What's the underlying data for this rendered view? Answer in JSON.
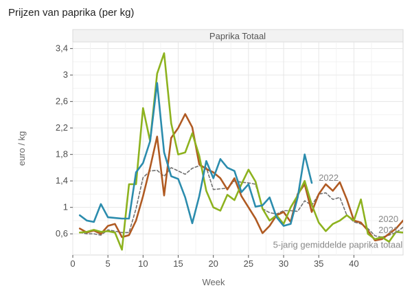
{
  "title": "Prijzen van paprika (per kg)",
  "chart_data": {
    "type": "line",
    "title": "Prijzen van paprika (per kg)",
    "panel_title": "Paprika Totaal",
    "xlabel": "Week",
    "ylabel": "euro / kg",
    "xlim": [
      0,
      47
    ],
    "ylim": [
      0.28,
      3.5
    ],
    "x_ticks": [
      0,
      5,
      10,
      15,
      20,
      25,
      30,
      35,
      40
    ],
    "y_ticks": [
      0.6,
      1,
      1.4,
      1.8,
      2.2,
      2.6,
      3,
      3.4
    ],
    "y_tick_labels": [
      "0,6",
      "1",
      "1,4",
      "1,8",
      "2,2",
      "2,6",
      "3",
      "3,4"
    ],
    "series": [
      {
        "name": "2022",
        "color": "#2b8cad",
        "x": [
          1,
          2,
          3,
          4,
          5,
          6,
          7,
          8,
          9,
          10,
          11,
          12,
          13,
          14,
          15,
          16,
          17,
          18,
          19,
          20,
          21,
          22,
          23,
          24,
          25,
          26,
          27,
          28,
          29,
          30,
          31,
          32,
          33,
          34
        ],
        "values": [
          0.88,
          0.8,
          0.78,
          1.05,
          0.85,
          0.84,
          0.83,
          0.83,
          1.53,
          1.67,
          2.0,
          2.88,
          1.83,
          1.47,
          1.43,
          1.15,
          0.76,
          1.17,
          1.7,
          1.44,
          1.73,
          1.6,
          1.55,
          1.23,
          1.35,
          1.01,
          1.03,
          1.15,
          0.85,
          0.72,
          0.75,
          1.15,
          1.8,
          1.37
        ]
      },
      {
        "name": "2021",
        "color": "#b05a22",
        "x": [
          1,
          2,
          3,
          4,
          5,
          6,
          7,
          8,
          9,
          10,
          11,
          12,
          13,
          14,
          15,
          16,
          17,
          18,
          19,
          20,
          21,
          22,
          23,
          24,
          25,
          26,
          27,
          28,
          29,
          30,
          31,
          32,
          33,
          34,
          35,
          36,
          37,
          38,
          39,
          40,
          41,
          42,
          43,
          44,
          45,
          46,
          47
        ],
        "values": [
          0.68,
          0.62,
          0.65,
          0.6,
          0.72,
          0.75,
          0.55,
          0.58,
          0.8,
          1.17,
          1.6,
          2.07,
          1.18,
          2.05,
          2.2,
          2.41,
          2.21,
          1.65,
          1.58,
          1.53,
          1.44,
          1.27,
          1.44,
          1.17,
          1.0,
          0.83,
          0.61,
          0.72,
          0.88,
          0.93,
          0.78,
          1.2,
          1.35,
          0.93,
          1.2,
          1.35,
          1.25,
          1.38,
          1.12,
          0.8,
          0.77,
          0.65,
          0.5,
          0.52,
          0.6,
          0.68,
          0.8
        ]
      },
      {
        "name": "2020",
        "color": "#8db21e",
        "x": [
          1,
          2,
          3,
          4,
          5,
          6,
          7,
          8,
          9,
          10,
          11,
          12,
          13,
          14,
          15,
          16,
          17,
          18,
          19,
          20,
          21,
          22,
          23,
          24,
          25,
          26,
          27,
          28,
          29,
          30,
          31,
          32,
          33,
          34,
          35,
          36,
          37,
          38,
          39,
          40,
          41,
          42,
          43,
          44,
          45,
          46,
          47
        ],
        "values": [
          0.62,
          0.63,
          0.66,
          0.63,
          0.64,
          0.62,
          0.36,
          1.35,
          1.35,
          2.5,
          2.0,
          3.02,
          3.33,
          2.27,
          1.8,
          1.83,
          2.12,
          1.78,
          1.25,
          1.0,
          0.95,
          1.19,
          1.11,
          1.35,
          1.57,
          1.39,
          0.98,
          0.8,
          0.88,
          0.75,
          1.0,
          1.18,
          1.4,
          1.04,
          0.77,
          0.64,
          0.75,
          0.8,
          0.88,
          0.8,
          1.12,
          0.6,
          0.52,
          0.55,
          0.48,
          0.63,
          0.62
        ]
      },
      {
        "name": "5-jarig gemiddelde paprika totaal",
        "color": "#707070",
        "dash": true,
        "x": [
          1,
          2,
          3,
          4,
          5,
          6,
          7,
          8,
          9,
          10,
          11,
          12,
          13,
          14,
          15,
          16,
          17,
          18,
          19,
          20,
          21,
          22,
          23,
          24,
          25,
          26,
          27,
          28,
          29,
          30,
          31,
          32,
          33,
          34,
          35,
          36,
          37,
          38,
          39,
          40,
          41,
          42,
          43,
          44,
          45,
          46,
          47
        ],
        "values": [
          0.62,
          0.6,
          0.6,
          0.58,
          0.66,
          0.64,
          0.62,
          0.62,
          0.98,
          1.45,
          1.55,
          1.56,
          1.47,
          1.6,
          1.55,
          1.5,
          1.59,
          1.63,
          1.6,
          1.27,
          1.28,
          1.29,
          1.4,
          1.38,
          1.37,
          1.35,
          0.98,
          0.92,
          0.9,
          0.95,
          0.95,
          0.94,
          1.1,
          1.03,
          1.2,
          1.22,
          1.12,
          1.15,
          0.88,
          0.78,
          0.75,
          0.68,
          0.57,
          0.55,
          0.58,
          0.62,
          0.7
        ]
      }
    ],
    "annotations": [
      {
        "text": "2022",
        "x": 35,
        "y": 1.4
      },
      {
        "text": "2020",
        "x": 43.5,
        "y": 0.78
      },
      {
        "text": "2021",
        "x": 43.5,
        "y": 0.61
      },
      {
        "text": "5-jarig gemiddelde paprika totaal",
        "x": 28.5,
        "y": 0.39
      }
    ]
  }
}
